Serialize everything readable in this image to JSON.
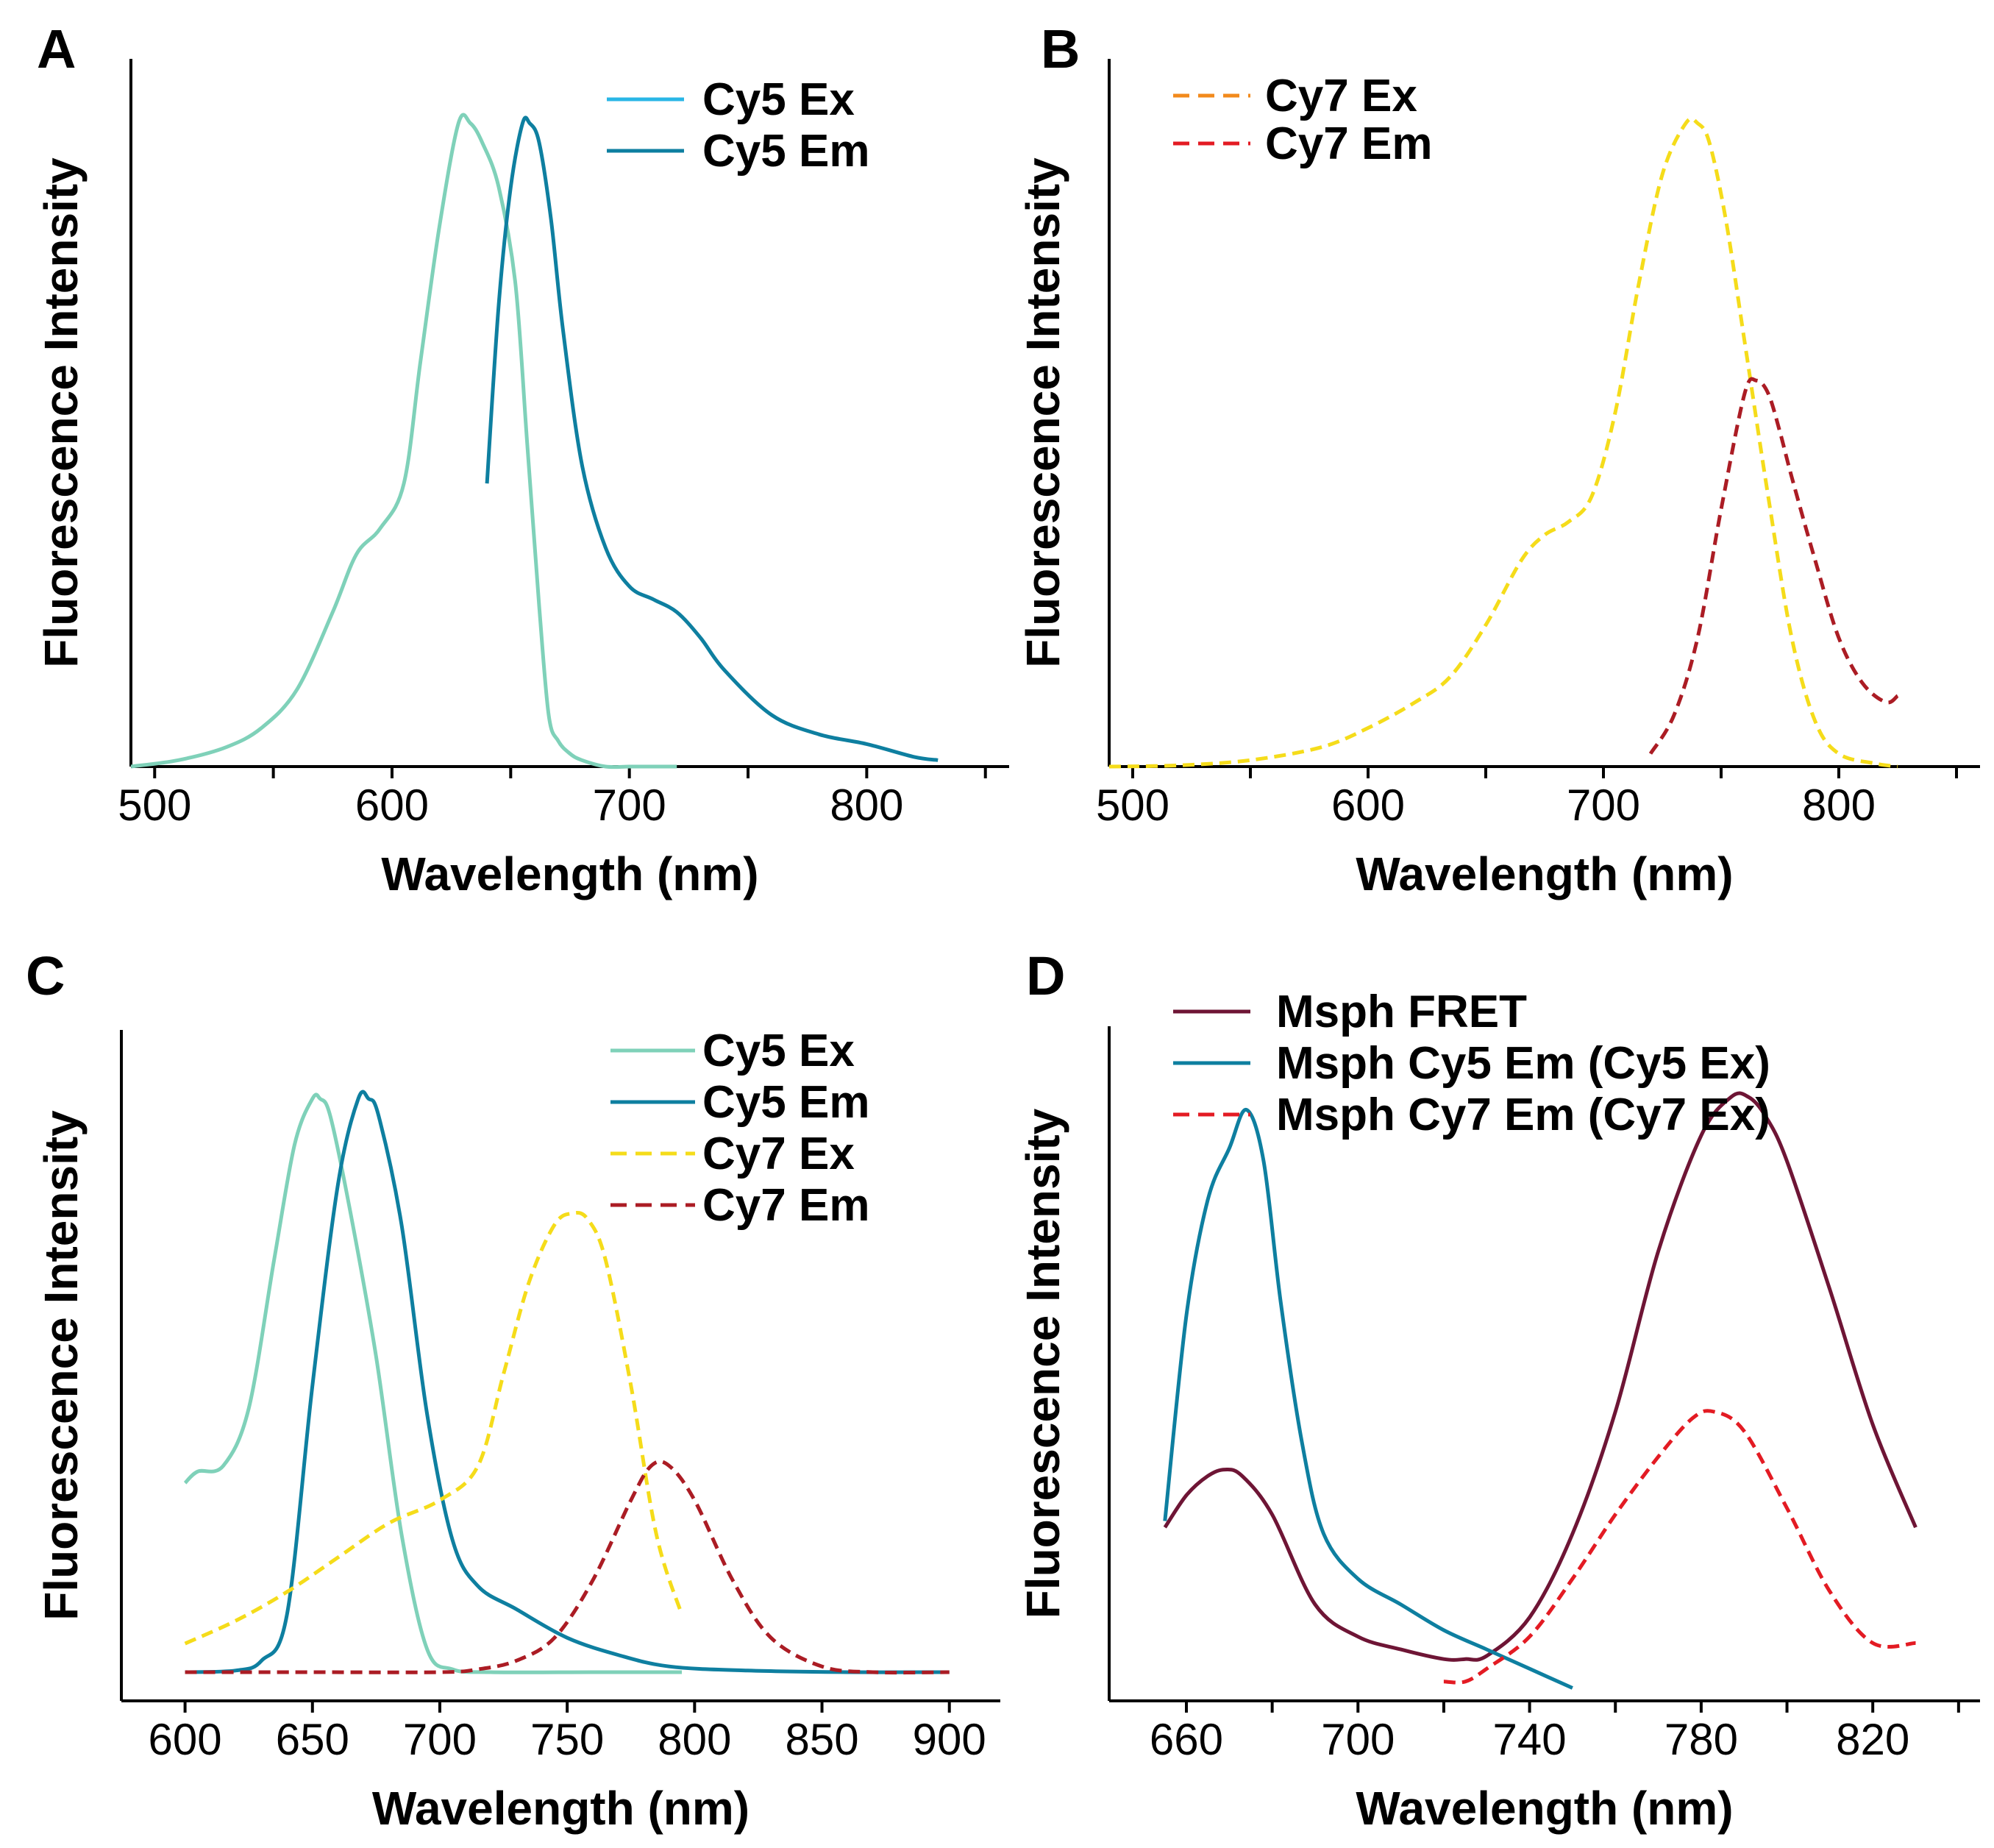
{
  "chart_data": [
    {
      "panel": "A",
      "type": "line",
      "xlabel": "Wavelength (nm)",
      "ylabel": "Fluorescence Intensity",
      "xlim": [
        490,
        860
      ],
      "xticks": [
        500,
        550,
        600,
        650,
        700,
        750,
        800,
        850
      ],
      "xtick_labels": [
        "500",
        "",
        "600",
        "",
        "700",
        "",
        "800",
        ""
      ],
      "ylim": [
        0,
        1.1
      ],
      "grid": false,
      "legend_position": "top-right",
      "series": [
        {
          "name": "Cy5 Ex",
          "legend_color": "#29b6e6",
          "color": "#7fd1b9",
          "dash": "solid",
          "x": [
            490,
            510,
            530,
            545,
            560,
            575,
            585,
            595,
            605,
            612,
            620,
            628,
            633,
            638,
            645,
            652,
            657,
            662,
            666,
            670,
            675,
            680,
            690,
            700,
            710,
            720
          ],
          "y": [
            0,
            0.01,
            0.03,
            0.06,
            0.12,
            0.24,
            0.33,
            0.37,
            0.44,
            0.63,
            0.84,
            1.0,
            1.0,
            0.97,
            0.9,
            0.75,
            0.5,
            0.25,
            0.08,
            0.04,
            0.02,
            0.01,
            0,
            0,
            0,
            0
          ]
        },
        {
          "name": "Cy5 Em",
          "legend_color": "#0e7fa0",
          "color": "#0e7fa0",
          "dash": "solid",
          "x": [
            640,
            645,
            650,
            655,
            658,
            662,
            667,
            672,
            680,
            690,
            700,
            710,
            720,
            730,
            740,
            760,
            780,
            800,
            820,
            830
          ],
          "y": [
            0.44,
            0.72,
            0.9,
            1.0,
            1.0,
            0.97,
            0.85,
            0.68,
            0.47,
            0.34,
            0.28,
            0.26,
            0.24,
            0.2,
            0.15,
            0.08,
            0.05,
            0.035,
            0.015,
            0.01
          ]
        }
      ]
    },
    {
      "panel": "B",
      "type": "line",
      "xlabel": "Wavelength (nm)",
      "ylabel": "Fluorescence Intensity",
      "xlim": [
        490,
        860
      ],
      "xticks": [
        500,
        550,
        600,
        650,
        700,
        750,
        800,
        850
      ],
      "xtick_labels": [
        "500",
        "",
        "600",
        "",
        "700",
        "",
        "800",
        ""
      ],
      "ylim": [
        0,
        1.1
      ],
      "grid": false,
      "legend_position": "top-left",
      "series": [
        {
          "name": "Cy7 Ex",
          "legend_color": "#f28a1c",
          "color": "#f5dc1a",
          "dash": "dashed",
          "x": [
            490,
            520,
            550,
            580,
            600,
            620,
            635,
            650,
            665,
            675,
            685,
            695,
            705,
            715,
            725,
            735,
            740,
            745,
            752,
            760,
            770,
            780,
            790,
            800,
            815,
            825
          ],
          "y": [
            0,
            0.002,
            0.01,
            0.03,
            0.06,
            0.1,
            0.14,
            0.22,
            0.32,
            0.36,
            0.38,
            0.42,
            0.55,
            0.75,
            0.92,
            1.0,
            1.0,
            0.97,
            0.85,
            0.66,
            0.42,
            0.2,
            0.07,
            0.02,
            0.005,
            0
          ]
        },
        {
          "name": "Cy7 Em",
          "legend_color": "#e31b23",
          "color": "#ab1c24",
          "dash": "dashed",
          "x": [
            720,
            730,
            740,
            750,
            760,
            765,
            770,
            775,
            780,
            790,
            800,
            810,
            820,
            825
          ],
          "y": [
            0.02,
            0.08,
            0.2,
            0.4,
            0.58,
            0.6,
            0.58,
            0.52,
            0.45,
            0.32,
            0.2,
            0.13,
            0.1,
            0.11
          ]
        }
      ]
    },
    {
      "panel": "C",
      "type": "line",
      "xlabel": "Wavelength (nm)",
      "ylabel": "Fluorescence Intensity",
      "xlim": [
        575,
        920
      ],
      "xticks": [
        600,
        650,
        700,
        750,
        800,
        850,
        900
      ],
      "xtick_labels": [
        "600",
        "650",
        "700",
        "750",
        "800",
        "850",
        "900"
      ],
      "ylim": [
        -0.05,
        1.12
      ],
      "grid": false,
      "legend_position": "top-right",
      "series": [
        {
          "name": "Cy5 Ex",
          "legend_color": "#7fd1b9",
          "color": "#7fd1b9",
          "dash": "solid",
          "x": [
            600,
            605,
            615,
            625,
            635,
            643,
            650,
            653,
            657,
            665,
            675,
            685,
            695,
            705,
            720,
            760,
            795
          ],
          "y": [
            0.33,
            0.35,
            0.36,
            0.46,
            0.72,
            0.92,
            1.0,
            1.0,
            0.97,
            0.8,
            0.55,
            0.24,
            0.04,
            0.005,
            0,
            0,
            0
          ]
        },
        {
          "name": "Cy5 Em",
          "legend_color": "#0e7fa0",
          "color": "#0e7fa0",
          "dash": "solid",
          "x": [
            600,
            620,
            630,
            640,
            650,
            660,
            668,
            672,
            676,
            685,
            695,
            705,
            715,
            730,
            750,
            770,
            790,
            820,
            860,
            900
          ],
          "y": [
            0,
            0.003,
            0.02,
            0.1,
            0.5,
            0.85,
            1.0,
            1.0,
            0.97,
            0.78,
            0.45,
            0.23,
            0.15,
            0.11,
            0.06,
            0.03,
            0.01,
            0.003,
            0,
            0
          ]
        },
        {
          "name": "Cy7 Ex",
          "legend_color": "#f5dc1a",
          "color": "#f5dc1a",
          "dash": "dashed",
          "x": [
            600,
            620,
            640,
            660,
            680,
            700,
            715,
            725,
            735,
            745,
            752,
            758,
            765,
            775,
            785,
            795
          ],
          "y": [
            0.05,
            0.09,
            0.14,
            0.2,
            0.26,
            0.3,
            0.36,
            0.52,
            0.68,
            0.78,
            0.8,
            0.79,
            0.72,
            0.5,
            0.24,
            0.1
          ]
        },
        {
          "name": "Cy7 Em",
          "legend_color": "#ab1c24",
          "color": "#ab1c24",
          "dash": "dashed",
          "x": [
            600,
            650,
            700,
            715,
            730,
            745,
            760,
            775,
            783,
            790,
            800,
            815,
            830,
            850,
            870,
            900
          ],
          "y": [
            0,
            0,
            0,
            0.005,
            0.02,
            0.06,
            0.16,
            0.3,
            0.36,
            0.36,
            0.3,
            0.16,
            0.06,
            0.01,
            0,
            0
          ]
        }
      ]
    },
    {
      "panel": "D",
      "type": "line",
      "xlabel": "Wavelength (nm)",
      "ylabel": "Fluorescence Intensity",
      "xlim": [
        642,
        845
      ],
      "xticks": [
        660,
        680,
        700,
        720,
        740,
        760,
        780,
        800,
        820,
        840
      ],
      "xtick_labels": [
        "660",
        "",
        "700",
        "",
        "740",
        "",
        "780",
        "",
        "820",
        ""
      ],
      "ylim": [
        0,
        1.05
      ],
      "grid": false,
      "legend_position": "top-left",
      "series": [
        {
          "name": "Msph FRET",
          "legend_color": "#6e1535",
          "color": "#6e1535",
          "dash": "solid",
          "x": [
            655,
            660,
            665,
            669,
            673,
            680,
            690,
            700,
            710,
            720,
            725,
            730,
            740,
            750,
            760,
            770,
            780,
            787,
            791,
            795,
            800,
            810,
            820,
            830
          ],
          "y": [
            0.27,
            0.32,
            0.35,
            0.36,
            0.35,
            0.29,
            0.15,
            0.1,
            0.08,
            0.065,
            0.065,
            0.07,
            0.13,
            0.26,
            0.45,
            0.7,
            0.88,
            0.94,
            0.94,
            0.91,
            0.84,
            0.64,
            0.43,
            0.27
          ]
        },
        {
          "name": "Msph Cy5 Em (Cy5 Ex)",
          "legend_color": "#0e7fa0",
          "color": "#0e7fa0",
          "dash": "solid",
          "x": [
            655,
            660,
            665,
            670,
            674,
            678,
            682,
            687,
            692,
            700,
            710,
            720,
            730,
            740,
            750
          ],
          "y": [
            0.28,
            0.6,
            0.78,
            0.86,
            0.92,
            0.84,
            0.62,
            0.4,
            0.26,
            0.19,
            0.15,
            0.11,
            0.08,
            0.05,
            0.02
          ]
        },
        {
          "name": "Msph Cy7 Em (Cy7 Ex)",
          "legend_color": "#e31b23",
          "color": "#e31b23",
          "dash": "dashed",
          "x": [
            720,
            725,
            730,
            740,
            750,
            760,
            770,
            778,
            783,
            790,
            800,
            810,
            820,
            830
          ],
          "y": [
            0.03,
            0.03,
            0.05,
            0.1,
            0.19,
            0.29,
            0.38,
            0.44,
            0.45,
            0.42,
            0.3,
            0.17,
            0.09,
            0.09
          ]
        }
      ]
    }
  ]
}
